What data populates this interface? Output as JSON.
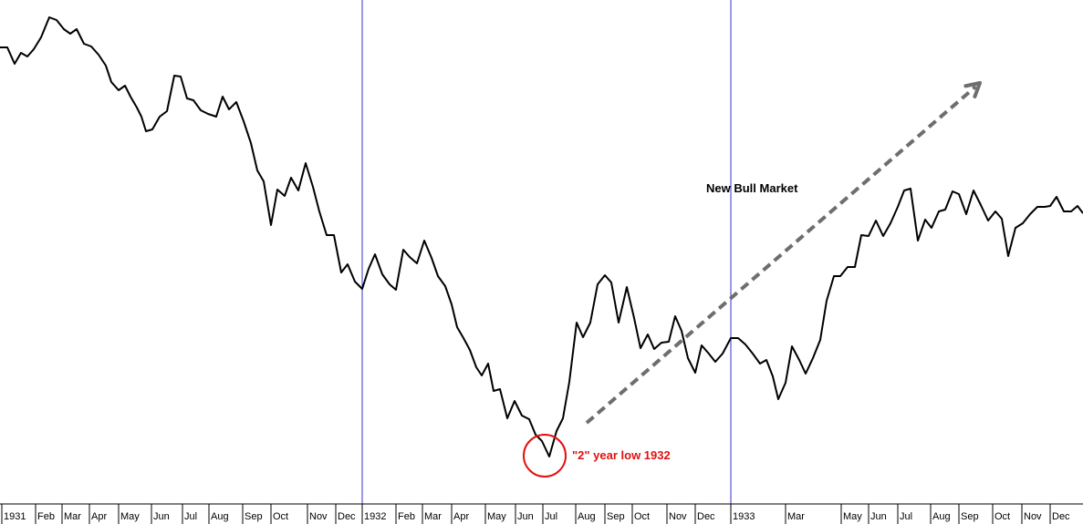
{
  "chart_data": {
    "type": "line",
    "title": "",
    "xlabel": "",
    "ylabel": "",
    "grid": false,
    "y_axis_shown": false,
    "x_range": [
      0,
      1187
    ],
    "y_range": [
      0,
      575
    ],
    "x_ticks": [
      {
        "label": "1931",
        "x": 2
      },
      {
        "label": "Feb",
        "x": 39
      },
      {
        "label": "Mar",
        "x": 68
      },
      {
        "label": "Apr",
        "x": 98
      },
      {
        "label": "May",
        "x": 130
      },
      {
        "label": "Jun",
        "x": 166
      },
      {
        "label": "Jul",
        "x": 200
      },
      {
        "label": "Aug",
        "x": 229
      },
      {
        "label": "Sep",
        "x": 266
      },
      {
        "label": "Oct",
        "x": 297
      },
      {
        "label": "Nov",
        "x": 337
      },
      {
        "label": "Dec",
        "x": 368
      },
      {
        "label": "1932",
        "x": 397
      },
      {
        "label": "Feb",
        "x": 434
      },
      {
        "label": "Mar",
        "x": 463
      },
      {
        "label": "Apr",
        "x": 495
      },
      {
        "label": "May",
        "x": 532
      },
      {
        "label": "Jun",
        "x": 565
      },
      {
        "label": "Jul",
        "x": 595
      },
      {
        "label": "Aug",
        "x": 631
      },
      {
        "label": "Sep",
        "x": 663
      },
      {
        "label": "Oct",
        "x": 693
      },
      {
        "label": "Nov",
        "x": 731
      },
      {
        "label": "Dec",
        "x": 762
      },
      {
        "label": "1933",
        "x": 801
      },
      {
        "label": "Mar",
        "x": 861
      },
      {
        "label": "May",
        "x": 922
      },
      {
        "label": "Jun",
        "x": 952
      },
      {
        "label": "Jul",
        "x": 984
      },
      {
        "label": "Aug",
        "x": 1020
      },
      {
        "label": "Sep",
        "x": 1051
      },
      {
        "label": "Oct",
        "x": 1088
      },
      {
        "label": "Nov",
        "x": 1120
      },
      {
        "label": "Dec",
        "x": 1151
      }
    ],
    "year_dividers": [
      397,
      801
    ],
    "series": [
      {
        "color": "#000000",
        "points": [
          [
            0,
            523
          ],
          [
            8,
            523
          ],
          [
            16,
            505
          ],
          [
            23,
            517
          ],
          [
            30,
            513
          ],
          [
            37,
            521
          ],
          [
            45,
            534
          ],
          [
            54,
            556
          ],
          [
            62,
            553
          ],
          [
            70,
            543
          ],
          [
            77,
            538
          ],
          [
            84,
            543
          ],
          [
            92,
            527
          ],
          [
            100,
            524
          ],
          [
            108,
            515
          ],
          [
            116,
            503
          ],
          [
            122,
            485
          ],
          [
            130,
            476
          ],
          [
            137,
            481
          ],
          [
            143,
            469
          ],
          [
            150,
            457
          ],
          [
            155,
            447
          ],
          [
            160,
            431
          ],
          [
            167,
            433
          ],
          [
            175,
            447
          ],
          [
            183,
            453
          ],
          [
            191,
            492
          ],
          [
            198,
            491
          ],
          [
            205,
            467
          ],
          [
            212,
            465
          ],
          [
            220,
            454
          ],
          [
            228,
            450
          ],
          [
            237,
            447
          ],
          [
            244,
            469
          ],
          [
            251,
            455
          ],
          [
            259,
            463
          ],
          [
            267,
            442
          ],
          [
            275,
            418
          ],
          [
            282,
            388
          ],
          [
            289,
            376
          ],
          [
            297,
            328
          ],
          [
            304,
            367
          ],
          [
            312,
            360
          ],
          [
            319,
            380
          ],
          [
            327,
            366
          ],
          [
            335,
            396
          ],
          [
            343,
            370
          ],
          [
            350,
            343
          ],
          [
            358,
            317
          ],
          [
            366,
            317
          ],
          [
            374,
            276
          ],
          [
            381,
            285
          ],
          [
            389,
            266
          ],
          [
            397,
            258
          ],
          [
            404,
            280
          ],
          [
            411,
            296
          ],
          [
            419,
            274
          ],
          [
            427,
            263
          ],
          [
            434,
            257
          ],
          [
            442,
            301
          ],
          [
            449,
            293
          ],
          [
            457,
            286
          ],
          [
            465,
            311
          ],
          [
            473,
            292
          ],
          [
            480,
            272
          ],
          [
            488,
            261
          ],
          [
            495,
            241
          ],
          [
            501,
            216
          ],
          [
            508,
            204
          ],
          [
            515,
            191
          ],
          [
            522,
            172
          ],
          [
            528,
            163
          ],
          [
            535,
            176
          ],
          [
            541,
            146
          ],
          [
            548,
            148
          ],
          [
            556,
            116
          ],
          [
            564,
            135
          ],
          [
            572,
            119
          ],
          [
            580,
            115
          ],
          [
            587,
            98
          ],
          [
            594,
            91
          ],
          [
            602,
            74
          ],
          [
            610,
            102
          ],
          [
            617,
            116
          ],
          [
            624,
            156
          ],
          [
            632,
            221
          ],
          [
            639,
            205
          ],
          [
            647,
            221
          ],
          [
            655,
            263
          ],
          [
            663,
            273
          ],
          [
            670,
            265
          ],
          [
            678,
            221
          ],
          [
            687,
            260
          ],
          [
            695,
            226
          ],
          [
            702,
            193
          ],
          [
            710,
            208
          ],
          [
            717,
            192
          ],
          [
            725,
            199
          ],
          [
            733,
            200
          ],
          [
            740,
            228
          ],
          [
            747,
            212
          ],
          [
            754,
            182
          ],
          [
            762,
            166
          ],
          [
            769,
            196
          ],
          [
            776,
            188
          ],
          [
            784,
            178
          ],
          [
            792,
            187
          ],
          [
            801,
            204
          ],
          [
            809,
            204
          ],
          [
            817,
            197
          ],
          [
            825,
            187
          ],
          [
            833,
            176
          ],
          [
            840,
            180
          ],
          [
            847,
            162
          ],
          [
            853,
            137
          ],
          [
            861,
            155
          ],
          [
            868,
            195
          ],
          [
            876,
            180
          ],
          [
            883,
            165
          ],
          [
            891,
            182
          ],
          [
            899,
            202
          ],
          [
            906,
            245
          ],
          [
            914,
            272
          ],
          [
            921,
            272
          ],
          [
            929,
            282
          ],
          [
            937,
            282
          ],
          [
            944,
            317
          ],
          [
            952,
            316
          ],
          [
            960,
            333
          ],
          [
            968,
            316
          ],
          [
            976,
            330
          ],
          [
            984,
            348
          ],
          [
            991,
            366
          ],
          [
            998,
            368
          ],
          [
            1006,
            311
          ],
          [
            1014,
            334
          ],
          [
            1021,
            325
          ],
          [
            1029,
            343
          ],
          [
            1036,
            345
          ],
          [
            1044,
            365
          ],
          [
            1051,
            362
          ],
          [
            1059,
            340
          ],
          [
            1067,
            366
          ],
          [
            1075,
            350
          ],
          [
            1083,
            333
          ],
          [
            1091,
            343
          ],
          [
            1098,
            335
          ],
          [
            1105,
            294
          ],
          [
            1113,
            325
          ],
          [
            1121,
            330
          ],
          [
            1129,
            340
          ],
          [
            1137,
            348
          ],
          [
            1145,
            348
          ],
          [
            1151,
            349
          ],
          [
            1158,
            359
          ],
          [
            1166,
            343
          ],
          [
            1174,
            343
          ],
          [
            1181,
            349
          ],
          [
            1187,
            341
          ]
        ]
      }
    ],
    "annotations": [
      {
        "text": "New Bull Market",
        "x": 774,
        "y": 364
      },
      {
        "text": "\"2\" year low 1932",
        "x": 627,
        "y": 71
      }
    ],
    "arrow": {
      "from": [
        643,
        111
      ],
      "to": [
        1074,
        484
      ],
      "color": "#6e6e6e"
    },
    "low_marker": {
      "cx": 597,
      "cy": 75,
      "r": 23,
      "color": "#e01010"
    },
    "colors": {
      "divider": "#3333cc",
      "line": "#000000",
      "axis": "#000000"
    }
  }
}
